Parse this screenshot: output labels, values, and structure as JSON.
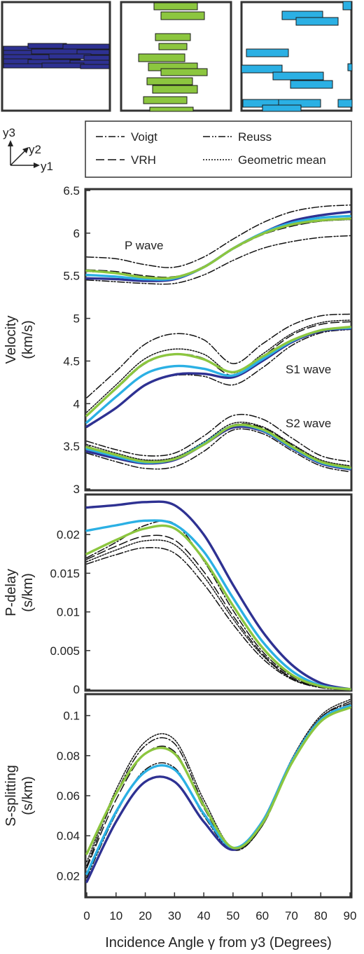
{
  "colors": {
    "dark_blue": "#2e3192",
    "light_blue": "#2bb0e4",
    "green": "#8cc63f",
    "black": "#111111",
    "frame": "#333333"
  },
  "axes_glyph": {
    "y3": "y3",
    "y2": "y2",
    "y1": "y1"
  },
  "legend": {
    "entries": [
      {
        "label": "Voigt",
        "dash": "dash-dot"
      },
      {
        "label": "Reuss",
        "dash": "dash-dot-dot"
      },
      {
        "label": "VRH",
        "dash": "long-dash"
      },
      {
        "label": "Geometric mean",
        "dash": "dotted"
      }
    ]
  },
  "xlabel": "Incidence Angle γ from y3 (Degrees)",
  "chart_data": [
    {
      "type": "line",
      "ylabel": [
        "Velocity",
        "(km/s)"
      ],
      "xlim": [
        0,
        90
      ],
      "ylim": [
        3,
        6.5
      ],
      "xticks": [
        "0",
        "10",
        "20",
        "30",
        "40",
        "50",
        "60",
        "70",
        "80",
        "90"
      ],
      "yticks": [
        "3",
        "3.5",
        "4",
        "4.5",
        "5",
        "5.5",
        "6",
        "6.5"
      ],
      "annotations": [
        "P wave",
        "S1 wave",
        "S2 wave"
      ],
      "x": [
        0,
        10,
        20,
        30,
        40,
        50,
        60,
        70,
        80,
        90
      ],
      "series": [
        {
          "group": "P",
          "color": "dark_blue",
          "style": "solid",
          "values": [
            5.47,
            5.46,
            5.44,
            5.46,
            5.6,
            5.82,
            6.0,
            6.14,
            6.21,
            6.25
          ]
        },
        {
          "group": "P",
          "color": "light_blue",
          "style": "solid",
          "values": [
            5.51,
            5.49,
            5.46,
            5.47,
            5.6,
            5.82,
            6.0,
            6.12,
            6.18,
            6.2
          ]
        },
        {
          "group": "P",
          "color": "green",
          "style": "solid",
          "values": [
            5.56,
            5.53,
            5.48,
            5.48,
            5.6,
            5.82,
            5.99,
            6.1,
            6.15,
            6.17
          ]
        },
        {
          "group": "P",
          "color": "black",
          "style": "dash-dot",
          "values": [
            5.72,
            5.7,
            5.63,
            5.6,
            5.72,
            5.93,
            6.12,
            6.25,
            6.31,
            6.33
          ]
        },
        {
          "group": "P",
          "color": "black",
          "style": "dash-dot-dot",
          "values": [
            5.45,
            5.43,
            5.41,
            5.41,
            5.51,
            5.68,
            5.82,
            5.9,
            5.95,
            5.97
          ]
        },
        {
          "group": "P",
          "color": "black",
          "style": "long-dash",
          "values": [
            5.57,
            5.55,
            5.5,
            5.49,
            5.6,
            5.81,
            5.98,
            6.08,
            6.14,
            6.16
          ]
        },
        {
          "group": "P",
          "color": "black",
          "style": "dotted",
          "values": [
            5.55,
            5.53,
            5.49,
            5.48,
            5.61,
            5.82,
            5.99,
            6.09,
            6.14,
            6.16
          ]
        },
        {
          "group": "S1",
          "color": "dark_blue",
          "style": "solid",
          "values": [
            3.73,
            3.95,
            4.22,
            4.34,
            4.35,
            4.31,
            4.5,
            4.72,
            4.85,
            4.88
          ]
        },
        {
          "group": "S1",
          "color": "light_blue",
          "style": "solid",
          "values": [
            3.78,
            4.08,
            4.35,
            4.44,
            4.41,
            4.33,
            4.52,
            4.73,
            4.86,
            4.89
          ]
        },
        {
          "group": "S1",
          "color": "green",
          "style": "solid",
          "values": [
            3.86,
            4.18,
            4.48,
            4.58,
            4.52,
            4.37,
            4.55,
            4.74,
            4.86,
            4.9
          ]
        },
        {
          "group": "S1",
          "color": "black",
          "style": "dash-dot",
          "values": [
            4.07,
            4.38,
            4.7,
            4.82,
            4.75,
            4.47,
            4.7,
            4.92,
            5.03,
            5.05
          ]
        },
        {
          "group": "S1",
          "color": "black",
          "style": "dash-dot-dot",
          "values": [
            3.72,
            3.95,
            4.22,
            4.33,
            4.32,
            4.22,
            4.42,
            4.68,
            4.83,
            4.87
          ]
        },
        {
          "group": "S1",
          "color": "black",
          "style": "long-dash",
          "values": [
            3.87,
            4.17,
            4.47,
            4.58,
            4.53,
            4.33,
            4.55,
            4.8,
            4.93,
            4.96
          ]
        },
        {
          "group": "S1",
          "color": "black",
          "style": "dotted",
          "values": [
            3.9,
            4.22,
            4.53,
            4.64,
            4.58,
            4.36,
            4.58,
            4.82,
            4.95,
            4.98
          ]
        },
        {
          "group": "S2",
          "color": "dark_blue",
          "style": "solid",
          "values": [
            3.44,
            3.36,
            3.3,
            3.34,
            3.52,
            3.72,
            3.68,
            3.48,
            3.3,
            3.23
          ]
        },
        {
          "group": "S2",
          "color": "light_blue",
          "style": "solid",
          "values": [
            3.47,
            3.38,
            3.31,
            3.35,
            3.53,
            3.74,
            3.69,
            3.49,
            3.31,
            3.24
          ]
        },
        {
          "group": "S2",
          "color": "green",
          "style": "solid",
          "values": [
            3.49,
            3.4,
            3.32,
            3.35,
            3.52,
            3.74,
            3.7,
            3.5,
            3.32,
            3.25
          ]
        },
        {
          "group": "S2",
          "color": "black",
          "style": "dash-dot",
          "values": [
            3.56,
            3.46,
            3.39,
            3.42,
            3.62,
            3.86,
            3.82,
            3.6,
            3.39,
            3.32
          ]
        },
        {
          "group": "S2",
          "color": "black",
          "style": "dash-dot-dot",
          "values": [
            3.42,
            3.32,
            3.24,
            3.26,
            3.44,
            3.69,
            3.65,
            3.45,
            3.27,
            3.2
          ]
        },
        {
          "group": "S2",
          "color": "black",
          "style": "long-dash",
          "values": [
            3.5,
            3.4,
            3.33,
            3.36,
            3.53,
            3.75,
            3.72,
            3.52,
            3.33,
            3.26
          ]
        },
        {
          "group": "S2",
          "color": "black",
          "style": "dotted",
          "values": [
            3.52,
            3.42,
            3.34,
            3.37,
            3.55,
            3.77,
            3.73,
            3.53,
            3.34,
            3.27
          ]
        }
      ]
    },
    {
      "type": "line",
      "ylabel": [
        "P-delay",
        "(s/km)"
      ],
      "xlim": [
        0,
        90
      ],
      "ylim": [
        0,
        0.025
      ],
      "xticks": [
        "0",
        "10",
        "20",
        "30",
        "40",
        "50",
        "60",
        "70",
        "80",
        "90"
      ],
      "yticks": [
        "0",
        "0.005",
        "0.01",
        "0.015",
        "0.02"
      ],
      "x": [
        0,
        10,
        20,
        30,
        40,
        50,
        60,
        70,
        80,
        90
      ],
      "series": [
        {
          "color": "dark_blue",
          "style": "solid",
          "values": [
            0.0235,
            0.0238,
            0.0242,
            0.0238,
            0.02,
            0.0135,
            0.0075,
            0.0032,
            0.0008,
            0.0
          ]
        },
        {
          "color": "light_blue",
          "style": "solid",
          "values": [
            0.0205,
            0.0212,
            0.0218,
            0.0213,
            0.0178,
            0.0118,
            0.0062,
            0.0024,
            0.0005,
            0.0
          ]
        },
        {
          "color": "green",
          "style": "solid",
          "values": [
            0.0175,
            0.0193,
            0.0208,
            0.0208,
            0.0168,
            0.0108,
            0.0054,
            0.0019,
            0.0004,
            0.0
          ]
        },
        {
          "color": "black",
          "style": "dash-dot",
          "values": [
            0.017,
            0.019,
            0.0212,
            0.0214,
            0.0166,
            0.0102,
            0.0049,
            0.0017,
            0.0003,
            0.0
          ]
        },
        {
          "color": "black",
          "style": "dash-dot-dot",
          "values": [
            0.0162,
            0.0174,
            0.0183,
            0.0176,
            0.0136,
            0.0084,
            0.004,
            0.0013,
            0.0002,
            0.0
          ]
        },
        {
          "color": "black",
          "style": "long-dash",
          "values": [
            0.0168,
            0.0185,
            0.0198,
            0.0193,
            0.0152,
            0.0095,
            0.0046,
            0.0015,
            0.0003,
            0.0
          ]
        },
        {
          "color": "black",
          "style": "dotted",
          "values": [
            0.0165,
            0.018,
            0.0192,
            0.0187,
            0.0146,
            0.0091,
            0.0044,
            0.0014,
            0.0003,
            0.0
          ]
        }
      ]
    },
    {
      "type": "line",
      "ylabel": [
        "S-splitting",
        "(s/km)"
      ],
      "xlim": [
        0,
        90
      ],
      "ylim": [
        0.01,
        0.11
      ],
      "xticks": [
        "0",
        "10",
        "20",
        "30",
        "40",
        "50",
        "60",
        "70",
        "80",
        "90"
      ],
      "yticks": [
        "0.02",
        "0.04",
        "0.06",
        "0.08",
        "0.1"
      ],
      "x": [
        0,
        10,
        20,
        30,
        40,
        50,
        60,
        70,
        80,
        90
      ],
      "series": [
        {
          "color": "dark_blue",
          "style": "solid",
          "values": [
            0.017,
            0.047,
            0.067,
            0.067,
            0.047,
            0.033,
            0.047,
            0.077,
            0.098,
            0.105
          ]
        },
        {
          "color": "light_blue",
          "style": "solid",
          "values": [
            0.021,
            0.052,
            0.072,
            0.073,
            0.051,
            0.034,
            0.047,
            0.077,
            0.098,
            0.105
          ]
        },
        {
          "color": "green",
          "style": "solid",
          "values": [
            0.031,
            0.061,
            0.081,
            0.081,
            0.055,
            0.034,
            0.046,
            0.076,
            0.097,
            0.104
          ]
        },
        {
          "color": "black",
          "style": "dash-dot",
          "values": [
            0.025,
            0.061,
            0.085,
            0.086,
            0.056,
            0.033,
            0.045,
            0.077,
            0.099,
            0.106
          ]
        },
        {
          "color": "black",
          "style": "dash-dot-dot",
          "values": [
            0.019,
            0.051,
            0.073,
            0.074,
            0.05,
            0.033,
            0.046,
            0.077,
            0.099,
            0.107
          ]
        },
        {
          "color": "black",
          "style": "long-dash",
          "values": [
            0.024,
            0.058,
            0.081,
            0.082,
            0.054,
            0.033,
            0.045,
            0.076,
            0.098,
            0.105
          ]
        },
        {
          "color": "black",
          "style": "dotted",
          "values": [
            0.027,
            0.063,
            0.087,
            0.088,
            0.058,
            0.034,
            0.046,
            0.078,
            0.1,
            0.108
          ]
        }
      ]
    }
  ]
}
